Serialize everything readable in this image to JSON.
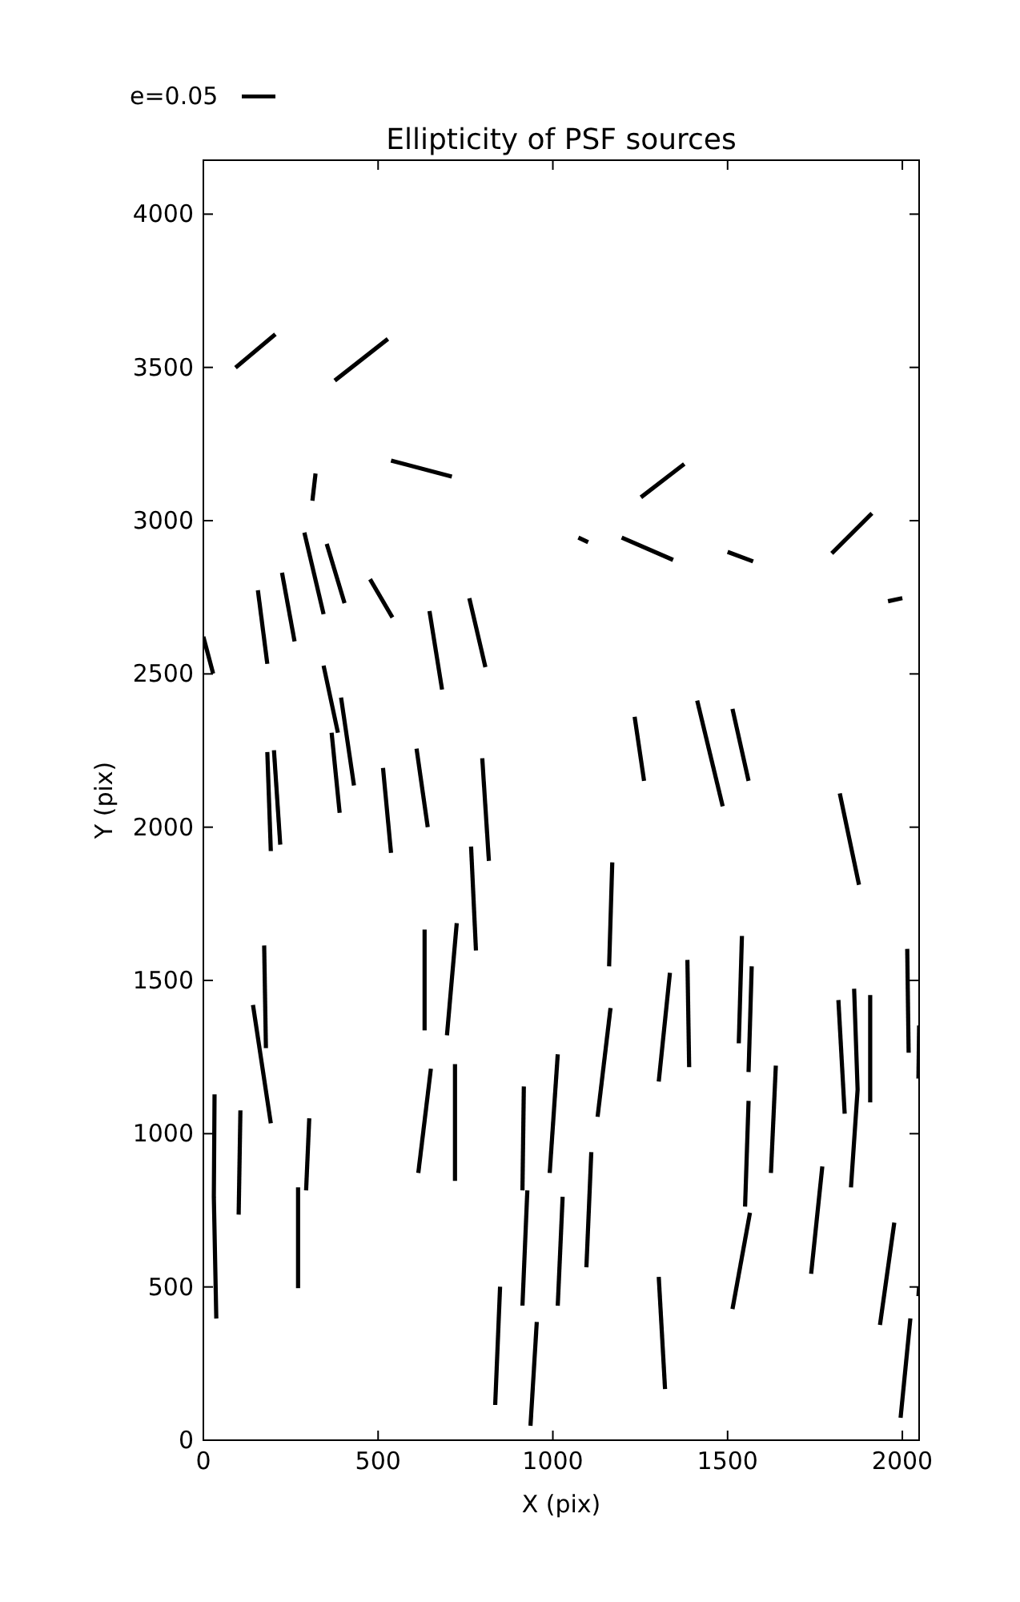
{
  "chart_data": {
    "type": "line",
    "title": "Ellipticity of PSF sources",
    "xlabel": "X (pix)",
    "ylabel": "Y (pix)",
    "annotations": [
      "e=0.05"
    ],
    "xlim": [
      0,
      2048
    ],
    "ylim": [
      0,
      4176
    ],
    "xticks": [
      0,
      500,
      1000,
      1500,
      2000
    ],
    "yticks": [
      0,
      500,
      1000,
      1500,
      2000,
      2500,
      3000,
      3500,
      4000
    ],
    "series": [
      {
        "type": "line",
        "color": "#000000",
        "x": [
          92,
          206
        ],
        "values": [
          3499,
          3608
        ]
      },
      {
        "type": "line",
        "color": "#000000",
        "x": [
          376,
          528
        ],
        "values": [
          3457,
          3593
        ]
      },
      {
        "type": "line",
        "color": "#000000",
        "x": [
          537,
          711
        ],
        "values": [
          3196,
          3144
        ]
      },
      {
        "type": "line",
        "color": "#000000",
        "x": [
          312,
          321
        ],
        "values": [
          3065,
          3154
        ]
      },
      {
        "type": "line",
        "color": "#000000",
        "x": [
          1252,
          1376
        ],
        "values": [
          3076,
          3185
        ]
      },
      {
        "type": "line",
        "color": "#000000",
        "x": [
          1073,
          1101
        ],
        "values": [
          2945,
          2930
        ]
      },
      {
        "type": "line",
        "color": "#000000",
        "x": [
          1197,
          1344
        ],
        "values": [
          2945,
          2872
        ]
      },
      {
        "type": "line",
        "color": "#000000",
        "x": [
          1500,
          1573
        ],
        "values": [
          2898,
          2867
        ]
      },
      {
        "type": "line",
        "color": "#000000",
        "x": [
          1798,
          1913
        ],
        "values": [
          2893,
          3024
        ]
      },
      {
        "type": "line",
        "color": "#000000",
        "x": [
          1959,
          2000
        ],
        "values": [
          2737,
          2747
        ]
      },
      {
        "type": "line",
        "color": "#000000",
        "x": [
          0,
          28
        ],
        "values": [
          2621,
          2501
        ]
      },
      {
        "type": "line",
        "color": "#000000",
        "x": [
          156,
          183
        ],
        "values": [
          2773,
          2533
        ]
      },
      {
        "type": "line",
        "color": "#000000",
        "x": [
          225,
          261
        ],
        "values": [
          2830,
          2606
        ]
      },
      {
        "type": "line",
        "color": "#000000",
        "x": [
          289,
          344
        ],
        "values": [
          2961,
          2695
        ]
      },
      {
        "type": "line",
        "color": "#000000",
        "x": [
          353,
          404
        ],
        "values": [
          2924,
          2731
        ]
      },
      {
        "type": "line",
        "color": "#000000",
        "x": [
          477,
          541
        ],
        "values": [
          2809,
          2684
        ]
      },
      {
        "type": "line",
        "color": "#000000",
        "x": [
          647,
          683
        ],
        "values": [
          2705,
          2449
        ]
      },
      {
        "type": "line",
        "color": "#000000",
        "x": [
          761,
          807
        ],
        "values": [
          2747,
          2522
        ]
      },
      {
        "type": "line",
        "color": "#000000",
        "x": [
          344,
          385
        ],
        "values": [
          2527,
          2308
        ]
      },
      {
        "type": "line",
        "color": "#000000",
        "x": [
          394,
          431
        ],
        "values": [
          2423,
          2136
        ]
      },
      {
        "type": "line",
        "color": "#000000",
        "x": [
          183,
          193
        ],
        "values": [
          2245,
          1922
        ]
      },
      {
        "type": "line",
        "color": "#000000",
        "x": [
          202,
          220
        ],
        "values": [
          2251,
          1943
        ]
      },
      {
        "type": "line",
        "color": "#000000",
        "x": [
          367,
          390
        ],
        "values": [
          2308,
          2047
        ]
      },
      {
        "type": "line",
        "color": "#000000",
        "x": [
          514,
          537
        ],
        "values": [
          2193,
          1916
        ]
      },
      {
        "type": "line",
        "color": "#000000",
        "x": [
          610,
          642
        ],
        "values": [
          2256,
          2000
        ]
      },
      {
        "type": "line",
        "color": "#000000",
        "x": [
          798,
          817
        ],
        "values": [
          2225,
          1890
        ]
      },
      {
        "type": "line",
        "color": "#000000",
        "x": [
          766,
          780
        ],
        "values": [
          1937,
          1598
        ]
      },
      {
        "type": "line",
        "color": "#000000",
        "x": [
          1234,
          1261
        ],
        "values": [
          2360,
          2151
        ]
      },
      {
        "type": "line",
        "color": "#000000",
        "x": [
          1413,
          1486
        ],
        "values": [
          2413,
          2068
        ]
      },
      {
        "type": "line",
        "color": "#000000",
        "x": [
          1514,
          1560
        ],
        "values": [
          2386,
          2151
        ]
      },
      {
        "type": "line",
        "color": "#000000",
        "x": [
          1821,
          1876
        ],
        "values": [
          2110,
          1812
        ]
      },
      {
        "type": "line",
        "color": "#000000",
        "x": [
          1170,
          1161
        ],
        "values": [
          1885,
          1546
        ]
      },
      {
        "type": "line",
        "color": "#000000",
        "x": [
          633,
          633
        ],
        "values": [
          1666,
          1337
        ]
      },
      {
        "type": "line",
        "color": "#000000",
        "x": [
          725,
          697
        ],
        "values": [
          1687,
          1321
        ]
      },
      {
        "type": "line",
        "color": "#000000",
        "x": [
          174,
          179
        ],
        "values": [
          1614,
          1279
        ]
      },
      {
        "type": "line",
        "color": "#000000",
        "x": [
          142,
          193
        ],
        "values": [
          1420,
          1034
        ]
      },
      {
        "type": "line",
        "color": "#000000",
        "x": [
          1541,
          1532
        ],
        "values": [
          1645,
          1295
        ]
      },
      {
        "type": "line",
        "color": "#000000",
        "x": [
          1569,
          1560
        ],
        "values": [
          1546,
          1201
        ]
      },
      {
        "type": "line",
        "color": "#000000",
        "x": [
          1385,
          1390
        ],
        "values": [
          1567,
          1217
        ]
      },
      {
        "type": "line",
        "color": "#000000",
        "x": [
          1335,
          1303
        ],
        "values": [
          1525,
          1170
        ]
      },
      {
        "type": "line",
        "color": "#000000",
        "x": [
          1817,
          1835
        ],
        "values": [
          1436,
          1065
        ]
      },
      {
        "type": "line",
        "color": "#000000",
        "x": [
          1862,
          1872,
          1853
        ],
        "values": [
          1473,
          1144,
          825
        ]
      },
      {
        "type": "line",
        "color": "#000000",
        "x": [
          1908,
          1908
        ],
        "values": [
          1452,
          1102
        ]
      },
      {
        "type": "line",
        "color": "#000000",
        "x": [
          2014,
          2018
        ],
        "values": [
          1603,
          1264
        ]
      },
      {
        "type": "line",
        "color": "#000000",
        "x": [
          2048,
          2046
        ],
        "values": [
          1353,
          1180
        ]
      },
      {
        "type": "line",
        "color": "#000000",
        "x": [
          32,
          30,
          37
        ],
        "values": [
          1128,
          794,
          397
        ]
      },
      {
        "type": "line",
        "color": "#000000",
        "x": [
          106,
          101
        ],
        "values": [
          1076,
          736
        ]
      },
      {
        "type": "line",
        "color": "#000000",
        "x": [
          303,
          294
        ],
        "values": [
          1050,
          815
        ]
      },
      {
        "type": "line",
        "color": "#000000",
        "x": [
          271,
          271
        ],
        "values": [
          825,
          496
        ]
      },
      {
        "type": "line",
        "color": "#000000",
        "x": [
          651,
          615
        ],
        "values": [
          1212,
          872
        ]
      },
      {
        "type": "line",
        "color": "#000000",
        "x": [
          720,
          720
        ],
        "values": [
          1227,
          846
        ]
      },
      {
        "type": "line",
        "color": "#000000",
        "x": [
          917,
          913
        ],
        "values": [
          1154,
          815
        ]
      },
      {
        "type": "line",
        "color": "#000000",
        "x": [
          927,
          913
        ],
        "values": [
          815,
          439
        ]
      },
      {
        "type": "line",
        "color": "#000000",
        "x": [
          1014,
          991
        ],
        "values": [
          1259,
          872
        ]
      },
      {
        "type": "line",
        "color": "#000000",
        "x": [
          1028,
          1014
        ],
        "values": [
          794,
          439
        ]
      },
      {
        "type": "line",
        "color": "#000000",
        "x": [
          1165,
          1128
        ],
        "values": [
          1410,
          1055
        ]
      },
      {
        "type": "line",
        "color": "#000000",
        "x": [
          1110,
          1096
        ],
        "values": [
          940,
          564
        ]
      },
      {
        "type": "line",
        "color": "#000000",
        "x": [
          1560,
          1550
        ],
        "values": [
          1107,
          762
        ]
      },
      {
        "type": "line",
        "color": "#000000",
        "x": [
          1638,
          1624
        ],
        "values": [
          1222,
          872
        ]
      },
      {
        "type": "line",
        "color": "#000000",
        "x": [
          1771,
          1739
        ],
        "values": [
          893,
          543
        ]
      },
      {
        "type": "line",
        "color": "#000000",
        "x": [
          1564,
          1514
        ],
        "values": [
          742,
          428
        ]
      },
      {
        "type": "line",
        "color": "#000000",
        "x": [
          1977,
          1936
        ],
        "values": [
          710,
          376
        ]
      },
      {
        "type": "line",
        "color": "#000000",
        "x": [
          2023,
          1995
        ],
        "values": [
          397,
          73
        ]
      },
      {
        "type": "line",
        "color": "#000000",
        "x": [
          2048,
          2046
        ],
        "values": [
          501,
          470
        ]
      },
      {
        "type": "line",
        "color": "#000000",
        "x": [
          849,
          835
        ],
        "values": [
          501,
          115
        ]
      },
      {
        "type": "line",
        "color": "#000000",
        "x": [
          954,
          936
        ],
        "values": [
          386,
          47
        ]
      },
      {
        "type": "line",
        "color": "#000000",
        "x": [
          1303,
          1321
        ],
        "values": [
          533,
          167
        ]
      }
    ]
  }
}
